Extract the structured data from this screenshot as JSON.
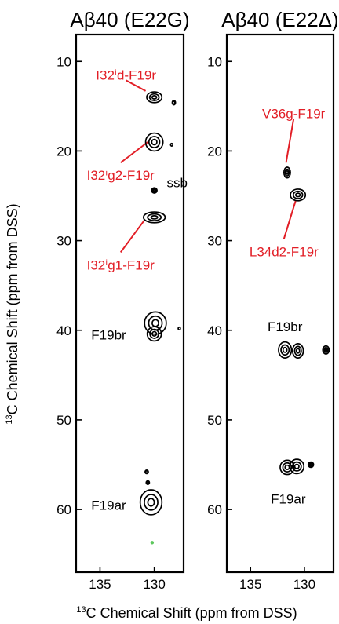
{
  "chart_data": {
    "type": "heatmap",
    "shared_xlabel": "13C Chemical Shift (ppm from DSS)",
    "shared_ylabel": "13C Chemical Shift (ppm from DSS)",
    "colors": {
      "peak": "#000000",
      "assignment": "#e21e26",
      "extra_peak": "#5cc75c"
    },
    "panels": [
      {
        "title": "Aβ40 (E22G)",
        "xlim": [
          137.2,
          127.3
        ],
        "ylim": [
          7.0,
          67.0
        ],
        "xticks": [
          135,
          130
        ],
        "yticks": [
          10,
          20,
          30,
          40,
          50,
          60
        ],
        "peaks": [
          {
            "x": 130.0,
            "y": 14.0,
            "w": 1.4,
            "h": 1.2
          },
          {
            "x": 128.2,
            "y": 14.6,
            "w": 0.3,
            "h": 0.5
          },
          {
            "x": 130.0,
            "y": 19.0,
            "w": 1.6,
            "h": 2.0
          },
          {
            "x": 128.4,
            "y": 19.3,
            "w": 0.2,
            "h": 0.3
          },
          {
            "x": 130.0,
            "y": 24.4,
            "w": 0.5,
            "h": 0.6
          },
          {
            "x": 130.0,
            "y": 27.4,
            "w": 2.0,
            "h": 1.2
          },
          {
            "x": 129.9,
            "y": 39.2,
            "w": 2.0,
            "h": 2.5
          },
          {
            "x": 130.0,
            "y": 40.4,
            "w": 1.3,
            "h": 1.6
          },
          {
            "x": 127.7,
            "y": 39.8,
            "w": 0.2,
            "h": 0.3
          },
          {
            "x": 130.7,
            "y": 55.8,
            "w": 0.3,
            "h": 0.4
          },
          {
            "x": 130.6,
            "y": 57.0,
            "w": 0.3,
            "h": 0.4
          },
          {
            "x": 130.3,
            "y": 59.2,
            "w": 2.0,
            "h": 2.8
          }
        ],
        "extra_peaks": [
          {
            "x": 130.2,
            "y": 63.7
          }
        ],
        "annotations": [
          {
            "text": "I32ⁱd-F19r",
            "color": "#e21e26",
            "text_x": 132.6,
            "text_y": 11.5,
            "peak": [
              130.8,
              13.3
            ]
          },
          {
            "text": "I32ⁱg2-F19r",
            "color": "#e21e26",
            "text_x": 133.1,
            "text_y": 22.7,
            "peak": [
              130.6,
              19.0
            ]
          },
          {
            "text": "I32ⁱg1-F19r",
            "color": "#e21e26",
            "text_x": 133.1,
            "text_y": 32.7,
            "peak": [
              130.9,
              27.7
            ]
          },
          {
            "text": "ssb",
            "color": "#000000",
            "text_x": 127.9,
            "text_y": 23.5
          },
          {
            "text": "F19br",
            "color": "#000000",
            "text_x": 134.2,
            "text_y": 40.5
          },
          {
            "text": "F19ar",
            "color": "#000000",
            "text_x": 134.2,
            "text_y": 59.5
          }
        ]
      },
      {
        "title": "Aβ40 (E22Δ)",
        "xlim": [
          137.2,
          127.3
        ],
        "ylim": [
          7.0,
          67.0
        ],
        "xticks": [
          135,
          130
        ],
        "yticks": [
          10,
          20,
          30,
          40,
          50,
          60
        ],
        "peaks": [
          {
            "x": 131.6,
            "y": 22.4,
            "w": 0.6,
            "h": 1.2
          },
          {
            "x": 130.6,
            "y": 24.9,
            "w": 1.4,
            "h": 1.3
          },
          {
            "x": 131.8,
            "y": 42.2,
            "w": 1.2,
            "h": 1.8
          },
          {
            "x": 130.6,
            "y": 42.3,
            "w": 1.0,
            "h": 1.6
          },
          {
            "x": 128.0,
            "y": 42.2,
            "w": 0.6,
            "h": 0.9
          },
          {
            "x": 131.6,
            "y": 55.3,
            "w": 1.3,
            "h": 1.6
          },
          {
            "x": 130.7,
            "y": 55.2,
            "w": 1.3,
            "h": 1.6
          },
          {
            "x": 129.4,
            "y": 55.0,
            "w": 0.5,
            "h": 0.6
          }
        ],
        "extra_peaks": [],
        "annotations": [
          {
            "text": "V36g-F19r",
            "color": "#e21e26",
            "text_x": 131.0,
            "text_y": 15.8,
            "peak": [
              131.7,
              21.3
            ]
          },
          {
            "text": "L34d2-F19r",
            "color": "#e21e26",
            "text_x": 131.9,
            "text_y": 31.2,
            "peak": [
              130.8,
              25.5
            ]
          },
          {
            "text": "F19br",
            "color": "#000000",
            "text_x": 131.8,
            "text_y": 39.6
          },
          {
            "text": "F19ar",
            "color": "#000000",
            "text_x": 131.5,
            "text_y": 58.8
          }
        ]
      }
    ]
  }
}
